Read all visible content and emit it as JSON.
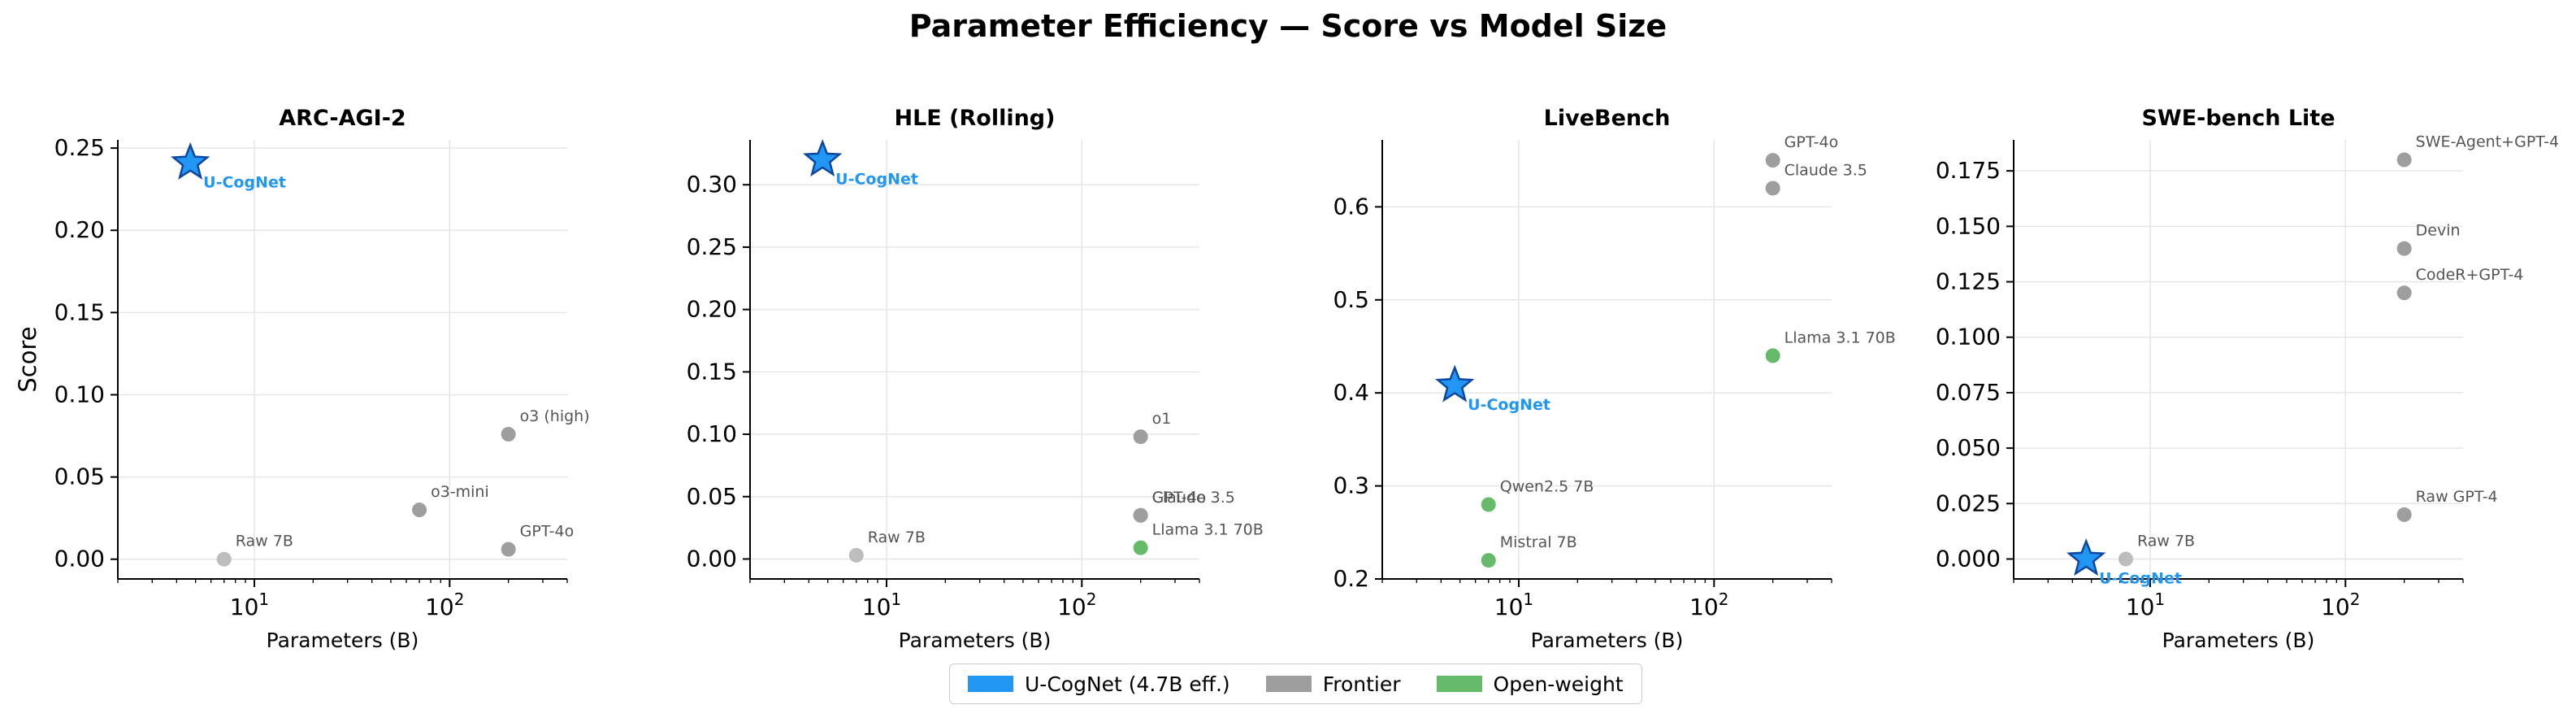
{
  "figure": {
    "title": "Parameter Efficiency — Score vs Model Size",
    "legend": [
      {
        "label": "U-CogNet (4.7B eff.)",
        "color": "#2196F3"
      },
      {
        "label": "Frontier",
        "color": "#9E9E9E"
      },
      {
        "label": "Open-weight",
        "color": "#66BB6A"
      }
    ]
  },
  "chart_data": [
    {
      "type": "scatter",
      "title": "ARC-AGI-2",
      "xlabel": "Parameters (B)",
      "ylabel": "Score",
      "xscale": "log",
      "xlim": [
        2,
        400
      ],
      "ylim": [
        -0.012,
        0.255
      ],
      "yticks": [
        "0.00",
        "0.05",
        "0.10",
        "0.15",
        "0.20",
        "0.25"
      ],
      "ytick_values": [
        0,
        0.05,
        0.1,
        0.15,
        0.2,
        0.25
      ],
      "grid": true,
      "points": [
        {
          "label": "U-CogNet",
          "x": 4.7,
          "y": 0.241,
          "group": "ucognet"
        },
        {
          "label": "o3 (high)",
          "x": 200,
          "y": 0.076,
          "group": "frontier"
        },
        {
          "label": "o3-mini",
          "x": 70,
          "y": 0.03,
          "group": "frontier"
        },
        {
          "label": "GPT-4o",
          "x": 200,
          "y": 0.006,
          "group": "frontier"
        },
        {
          "label": "Raw 7B",
          "x": 7,
          "y": 0.0,
          "group": "raw"
        }
      ]
    },
    {
      "type": "scatter",
      "title": "HLE (Rolling)",
      "xlabel": "Parameters (B)",
      "ylabel": "",
      "xscale": "log",
      "xlim": [
        2,
        400
      ],
      "ylim": [
        -0.016,
        0.336
      ],
      "yticks": [
        "0.00",
        "0.05",
        "0.10",
        "0.15",
        "0.20",
        "0.25",
        "0.30"
      ],
      "ytick_values": [
        0,
        0.05,
        0.1,
        0.15,
        0.2,
        0.25,
        0.3
      ],
      "grid": true,
      "points": [
        {
          "label": "U-CogNet",
          "x": 4.7,
          "y": 0.32,
          "group": "ucognet"
        },
        {
          "label": "o1",
          "x": 200,
          "y": 0.098,
          "group": "frontier"
        },
        {
          "label": "Claude 3.5",
          "x": 200,
          "y": 0.035,
          "group": "frontier"
        },
        {
          "label": "GPT-4o",
          "x": 200,
          "y": 0.035,
          "group": "frontier"
        },
        {
          "label": "Llama 3.1 70B",
          "x": 200,
          "y": 0.009,
          "group": "open"
        },
        {
          "label": "Raw 7B",
          "x": 7,
          "y": 0.003,
          "group": "raw"
        }
      ]
    },
    {
      "type": "scatter",
      "title": "LiveBench",
      "xlabel": "Parameters (B)",
      "ylabel": "",
      "xscale": "log",
      "xlim": [
        2,
        400
      ],
      "ylim": [
        0.2,
        0.672
      ],
      "yticks": [
        "0.2",
        "0.3",
        "0.4",
        "0.5",
        "0.6"
      ],
      "ytick_values": [
        0.2,
        0.3,
        0.4,
        0.5,
        0.6
      ],
      "grid": true,
      "points": [
        {
          "label": "GPT-4o",
          "x": 200,
          "y": 0.65,
          "group": "frontier"
        },
        {
          "label": "Claude 3.5",
          "x": 200,
          "y": 0.62,
          "group": "frontier"
        },
        {
          "label": "Llama 3.1 70B",
          "x": 200,
          "y": 0.44,
          "group": "open"
        },
        {
          "label": "U-CogNet",
          "x": 4.7,
          "y": 0.408,
          "group": "ucognet"
        },
        {
          "label": "Qwen2.5 7B",
          "x": 7,
          "y": 0.28,
          "group": "open"
        },
        {
          "label": "Mistral 7B",
          "x": 7,
          "y": 0.22,
          "group": "open"
        }
      ]
    },
    {
      "type": "scatter",
      "title": "SWE-bench Lite",
      "xlabel": "Parameters (B)",
      "ylabel": "",
      "xscale": "log",
      "xlim": [
        2,
        400
      ],
      "ylim": [
        -0.009,
        0.189
      ],
      "yticks": [
        "0.000",
        "0.025",
        "0.050",
        "0.075",
        "0.100",
        "0.125",
        "0.150",
        "0.175"
      ],
      "ytick_values": [
        0,
        0.025,
        0.05,
        0.075,
        0.1,
        0.125,
        0.15,
        0.175
      ],
      "grid": true,
      "points": [
        {
          "label": "SWE-Agent+GPT-4",
          "x": 200,
          "y": 0.18,
          "group": "frontier"
        },
        {
          "label": "Devin",
          "x": 200,
          "y": 0.14,
          "group": "frontier"
        },
        {
          "label": "CodeR+GPT-4",
          "x": 200,
          "y": 0.12,
          "group": "frontier"
        },
        {
          "label": "Raw GPT-4",
          "x": 200,
          "y": 0.02,
          "group": "frontier"
        },
        {
          "label": "Raw 7B",
          "x": 7.5,
          "y": 0.0,
          "group": "raw"
        },
        {
          "label": "U-CogNet",
          "x": 4.7,
          "y": 0.0,
          "group": "ucognet"
        }
      ]
    }
  ],
  "colors": {
    "ucognet": "#2196F3",
    "ucognet_edge": "#0D47A1",
    "frontier": "#9E9E9E",
    "open": "#66BB6A",
    "raw": "#BDBDBD",
    "annotation": "#555555",
    "grid": "#e6e6e6"
  },
  "xtick_labels": [
    {
      "base": "10",
      "exp": "1",
      "value": 10
    },
    {
      "base": "10",
      "exp": "2",
      "value": 100
    }
  ]
}
